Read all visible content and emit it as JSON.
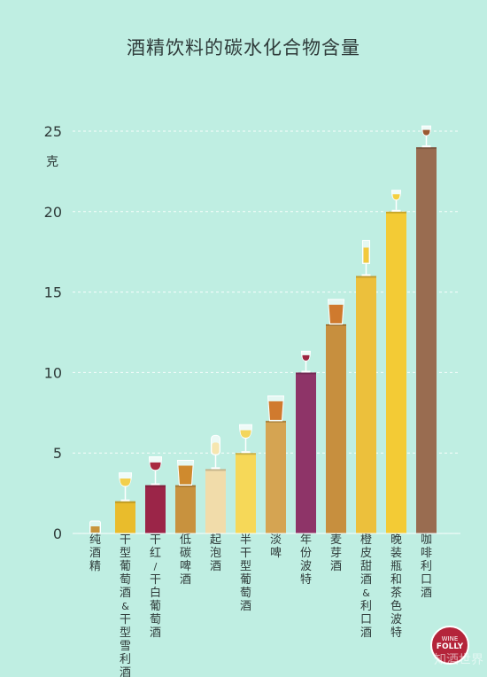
{
  "title": "酒精饮料的碳水化合物含量",
  "unit_label": "克",
  "logo_text": [
    "WINE",
    "FOLLY"
  ],
  "watermark": "知酒世界",
  "colors": {
    "background": "#bfeee2",
    "grid": "#ffffff",
    "text": "#2f3b3a"
  },
  "chart_data": {
    "type": "bar",
    "title": "酒精饮料的碳水化合物含量",
    "ylabel": "克",
    "ylim": [
      0,
      25
    ],
    "yticks": [
      0,
      5,
      10,
      15,
      20,
      25
    ],
    "grid": true,
    "categories": [
      "纯酒精",
      "干型葡萄酒&干型雪利酒",
      "干红/干白葡萄酒",
      "低碳啤酒",
      "起泡酒",
      "半干型葡萄酒",
      "淡啤",
      "年份波特",
      "麦芽酒",
      "橙皮甜酒&利口酒",
      "晚装瓶和茶色波特",
      "咖啡利口酒"
    ],
    "values": [
      0,
      2,
      3,
      3,
      4,
      5,
      7,
      10,
      13,
      16,
      20,
      24
    ],
    "bar_colors": [
      "#c8953c",
      "#e9bc2c",
      "#9b2548",
      "#c8923e",
      "#f1dcaa",
      "#f6d858",
      "#d5a452",
      "#8e3468",
      "#c78f3e",
      "#ecc03c",
      "#f3cb35",
      "#996c50"
    ],
    "glass_types": [
      "tumbler",
      "white-wine",
      "red-wine",
      "beer",
      "flute",
      "white-wine",
      "beer",
      "port",
      "beer",
      "cordial",
      "port",
      "port"
    ],
    "glass_liquid_colors": [
      "#c8953c",
      "#f2cf4c",
      "#a82a40",
      "#cf8a2e",
      "#f6e6b0",
      "#f3d65c",
      "#d07a2e",
      "#9c2540",
      "#cf7a2e",
      "#f3c93c",
      "#f3cf40",
      "#9a5a32"
    ]
  }
}
